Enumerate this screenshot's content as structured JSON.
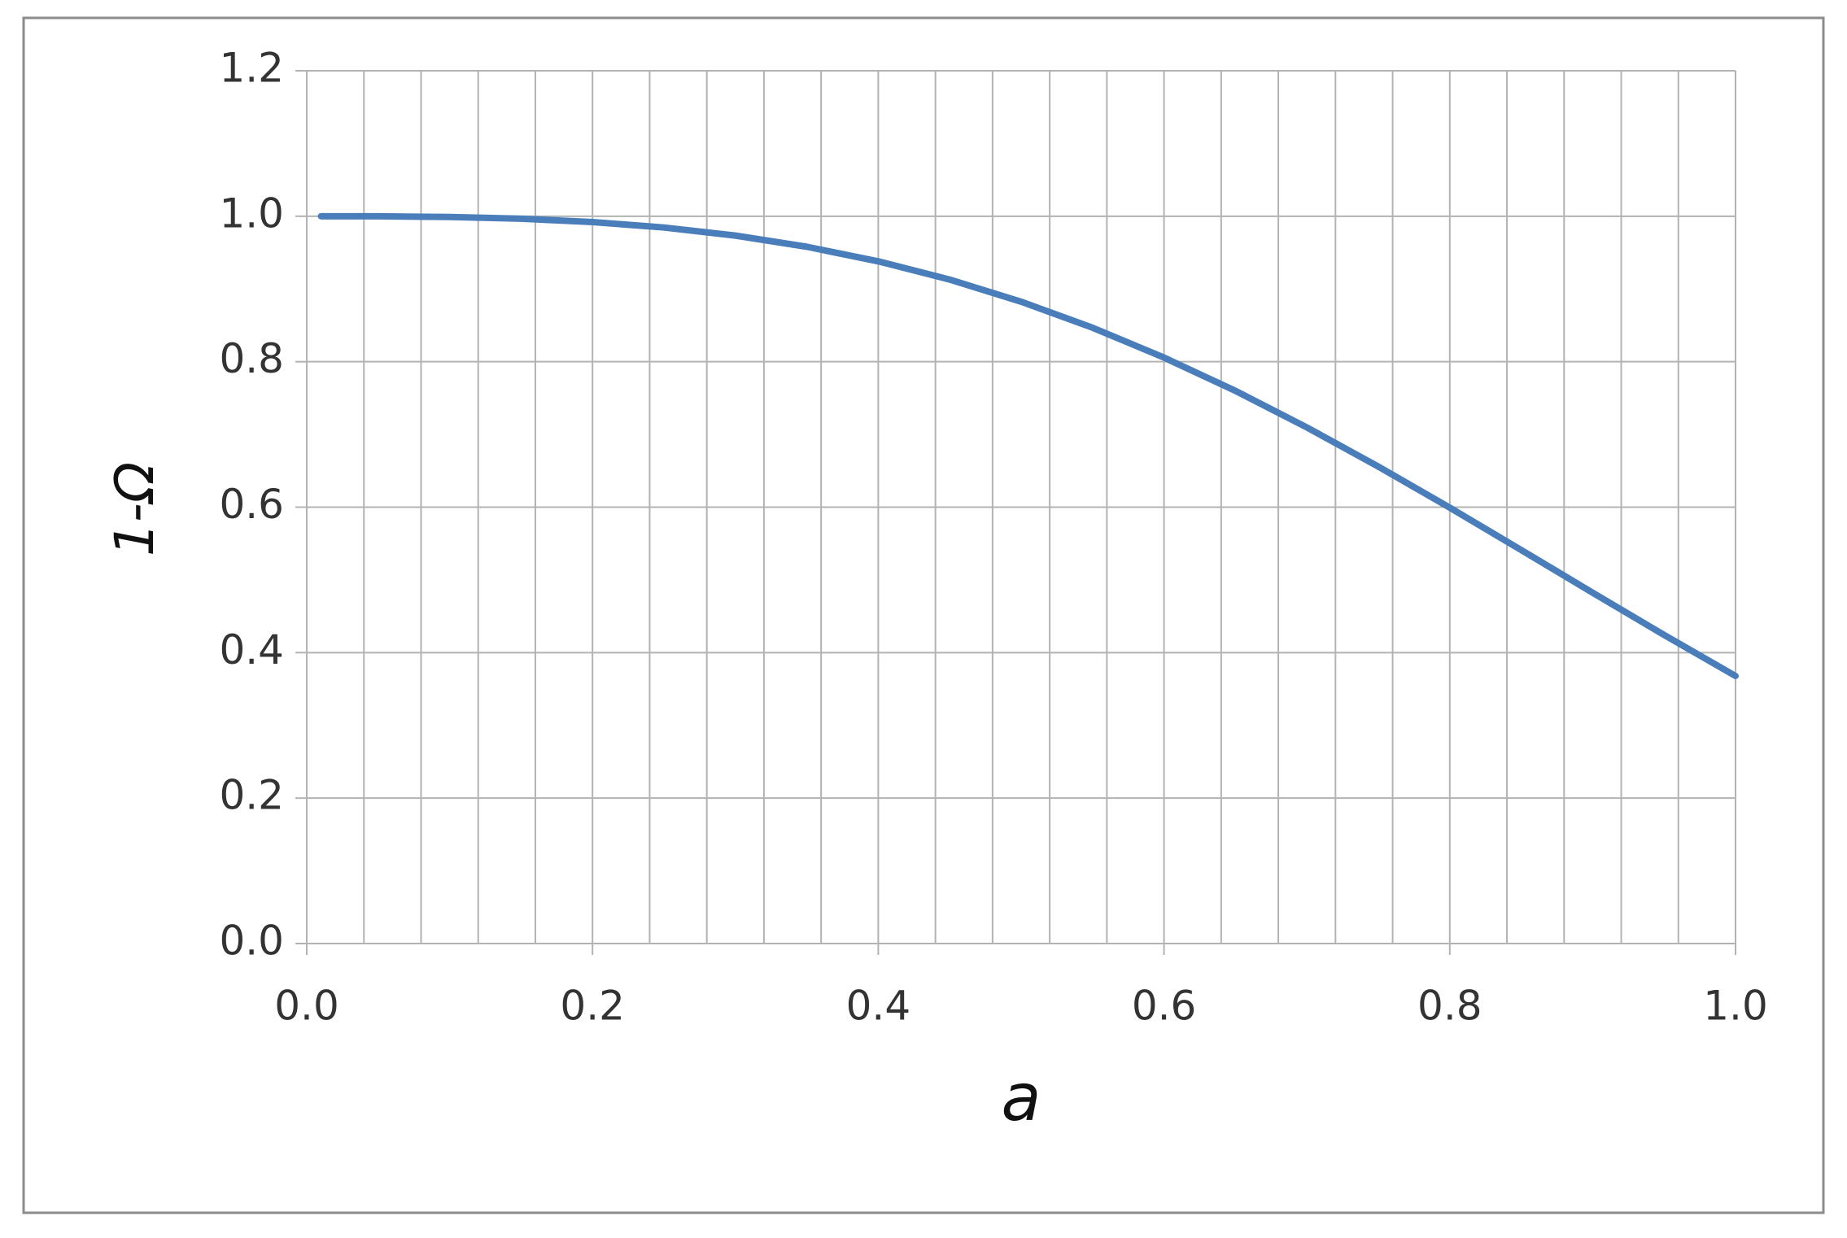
{
  "chart_data": {
    "type": "line",
    "x_label": "a",
    "y_label": "1-Ω",
    "x": [
      0.01,
      0.05,
      0.1,
      0.15,
      0.2,
      0.25,
      0.3,
      0.35,
      0.4,
      0.45,
      0.5,
      0.55,
      0.6,
      0.65,
      0.7,
      0.75,
      0.8,
      0.85,
      0.9,
      0.95,
      1.0
    ],
    "series": [
      {
        "color": "#4a7ebb",
        "values": [
          1.0,
          0.9999,
          0.999,
          0.9966,
          0.992,
          0.9845,
          0.9734,
          0.958,
          0.938,
          0.9129,
          0.8825,
          0.8467,
          0.8057,
          0.7599,
          0.7096,
          0.6558,
          0.5993,
          0.5411,
          0.4824,
          0.4243,
          0.3679
        ]
      }
    ],
    "xlim": [
      0,
      1
    ],
    "ylim": [
      0,
      1.2
    ],
    "xticks": [
      {
        "value": 0,
        "label": "0.0"
      },
      0.2,
      0.4,
      0.6,
      0.8,
      {
        "value": 1,
        "label": "1.0"
      }
    ],
    "yticks": [
      {
        "value": 0,
        "label": "0.0"
      },
      0.2,
      0.4,
      0.6,
      0.8,
      {
        "value": 1,
        "label": "1.0"
      },
      1.2
    ],
    "x_minor_grid": [
      0.04,
      0.08,
      0.12,
      0.16,
      0.24,
      0.28,
      0.32,
      0.36,
      0.44,
      0.48,
      0.52,
      0.56,
      0.64,
      0.68,
      0.72,
      0.76,
      0.84,
      0.88,
      0.92,
      0.96
    ],
    "grid": true
  }
}
